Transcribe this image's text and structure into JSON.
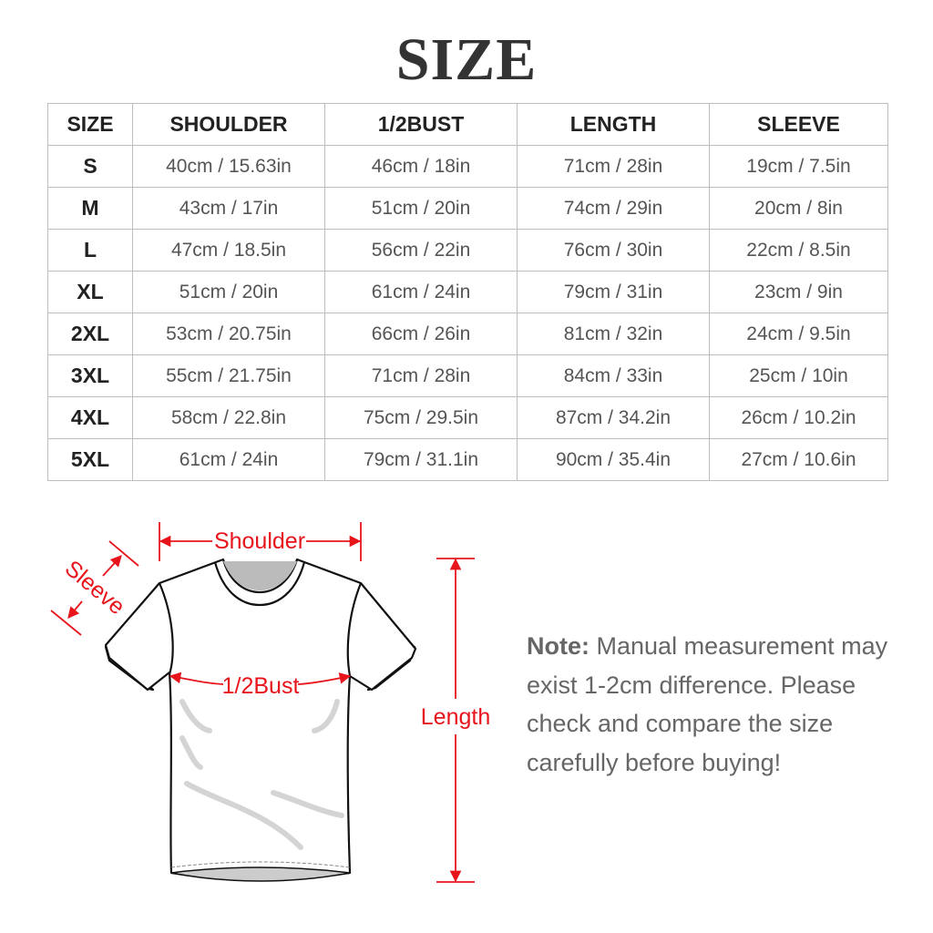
{
  "title": "SIZE",
  "table": {
    "headers": [
      "SIZE",
      "SHOULDER",
      "1/2BUST",
      "LENGTH",
      "SLEEVE"
    ],
    "rows": [
      [
        "S",
        "40cm / 15.63in",
        "46cm / 18in",
        "71cm / 28in",
        "19cm / 7.5in"
      ],
      [
        "M",
        "43cm / 17in",
        "51cm / 20in",
        "74cm / 29in",
        "20cm / 8in"
      ],
      [
        "L",
        "47cm / 18.5in",
        "56cm / 22in",
        "76cm / 30in",
        "22cm / 8.5in"
      ],
      [
        "XL",
        "51cm / 20in",
        "61cm / 24in",
        "79cm / 31in",
        "23cm / 9in"
      ],
      [
        "2XL",
        "53cm / 20.75in",
        "66cm / 26in",
        "81cm / 32in",
        "24cm / 9.5in"
      ],
      [
        "3XL",
        "55cm / 21.75in",
        "71cm / 28in",
        "84cm / 33in",
        "25cm / 10in"
      ],
      [
        "4XL",
        "58cm / 22.8in",
        "75cm / 29.5in",
        "87cm / 34.2in",
        "26cm / 10.2in"
      ],
      [
        "5XL",
        "61cm / 24in",
        "79cm / 31.1in",
        "90cm / 35.4in",
        "27cm / 10.6in"
      ]
    ]
  },
  "diagram": {
    "labels": {
      "shoulder": "Shoulder",
      "sleeve": "Sleeve",
      "bust": "1/2Bust",
      "length": "Length"
    },
    "accent_color": "#e8141c",
    "icon": "tshirt-icon"
  },
  "note": {
    "label": "Note:",
    "text": "Manual measurement may exist 1-2cm difference. Please check and compare the size carefully before buying!"
  }
}
